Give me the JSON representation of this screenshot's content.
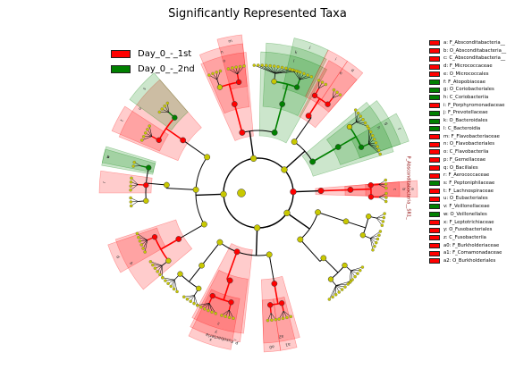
{
  "chart_data": {
    "type": "cladogram",
    "title": "Significantly Represented Taxa",
    "classes": [
      {
        "name": "Day_0_-_1st",
        "color": "#ff0000"
      },
      {
        "name": "Day_0_-_2nd",
        "color": "#008000"
      }
    ],
    "clades": [
      {
        "id": "a",
        "name": "F_Absconditabacteria__",
        "class": "Day_0_-_1st"
      },
      {
        "id": "b",
        "name": "O_Absconditabacteria__",
        "class": "Day_0_-_1st"
      },
      {
        "id": "c",
        "name": "C_Absconditabacteria__",
        "class": "Day_0_-_1st"
      },
      {
        "id": "d",
        "name": "F_Micrococcaceae",
        "class": "Day_0_-_1st"
      },
      {
        "id": "e",
        "name": "O_Micrococcales",
        "class": "Day_0_-_1st"
      },
      {
        "id": "f",
        "name": "F_Atopobiaceae",
        "class": "Day_0_-_2nd"
      },
      {
        "id": "g",
        "name": "O_Coriobacteriales",
        "class": "Day_0_-_2nd"
      },
      {
        "id": "h",
        "name": "C_Coriobacteriia",
        "class": "Day_0_-_2nd"
      },
      {
        "id": "i",
        "name": "F_Porphyromonadaceae",
        "class": "Day_0_-_1st"
      },
      {
        "id": "j",
        "name": "F_Prevotellaceae",
        "class": "Day_0_-_2nd"
      },
      {
        "id": "k",
        "name": "O_Bacteroidales",
        "class": "Day_0_-_2nd"
      },
      {
        "id": "l",
        "name": "C_Bacteroidia",
        "class": "Day_0_-_2nd"
      },
      {
        "id": "m",
        "name": "F_Flavobacteriaceae",
        "class": "Day_0_-_1st"
      },
      {
        "id": "n",
        "name": "O_Flavobacteriales",
        "class": "Day_0_-_1st"
      },
      {
        "id": "o",
        "name": "C_Flavobacteriia",
        "class": "Day_0_-_1st"
      },
      {
        "id": "p",
        "name": "F_Gemellaceae",
        "class": "Day_0_-_1st"
      },
      {
        "id": "q",
        "name": "O_Bacillales",
        "class": "Day_0_-_1st"
      },
      {
        "id": "r",
        "name": "F_Aerococcaceae",
        "class": "Day_0_-_1st"
      },
      {
        "id": "s",
        "name": "F_Peptoniphilaceae",
        "class": "Day_0_-_2nd"
      },
      {
        "id": "t",
        "name": "F_Lachnospiraceae",
        "class": "Day_0_-_1st"
      },
      {
        "id": "u",
        "name": "O_Eubacteriales",
        "class": "Day_0_-_1st"
      },
      {
        "id": "v",
        "name": "F_Veillonellaceae",
        "class": "Day_0_-_2nd"
      },
      {
        "id": "w",
        "name": "O_Veillonellales",
        "class": "Day_0_-_2nd"
      },
      {
        "id": "x",
        "name": "F_Leptotrichiaceae",
        "class": "Day_0_-_1st"
      },
      {
        "id": "y",
        "name": "O_Fusobacteriales",
        "class": "Day_0_-_1st"
      },
      {
        "id": "z",
        "name": "C_Fusobacteriia",
        "class": "Day_0_-_1st"
      },
      {
        "id": "a0",
        "name": "F_Burkholderiaceae",
        "class": "Day_0_-_1st"
      },
      {
        "id": "a1",
        "name": "F_Comamonadaceae",
        "class": "Day_0_-_1st"
      },
      {
        "id": "a2",
        "name": "O_Burkholderiales",
        "class": "Day_0_-_1st"
      }
    ],
    "phylum_labels": [
      "P_Absconditabacteria__SR1_",
      "P_Fusobacteria"
    ]
  }
}
